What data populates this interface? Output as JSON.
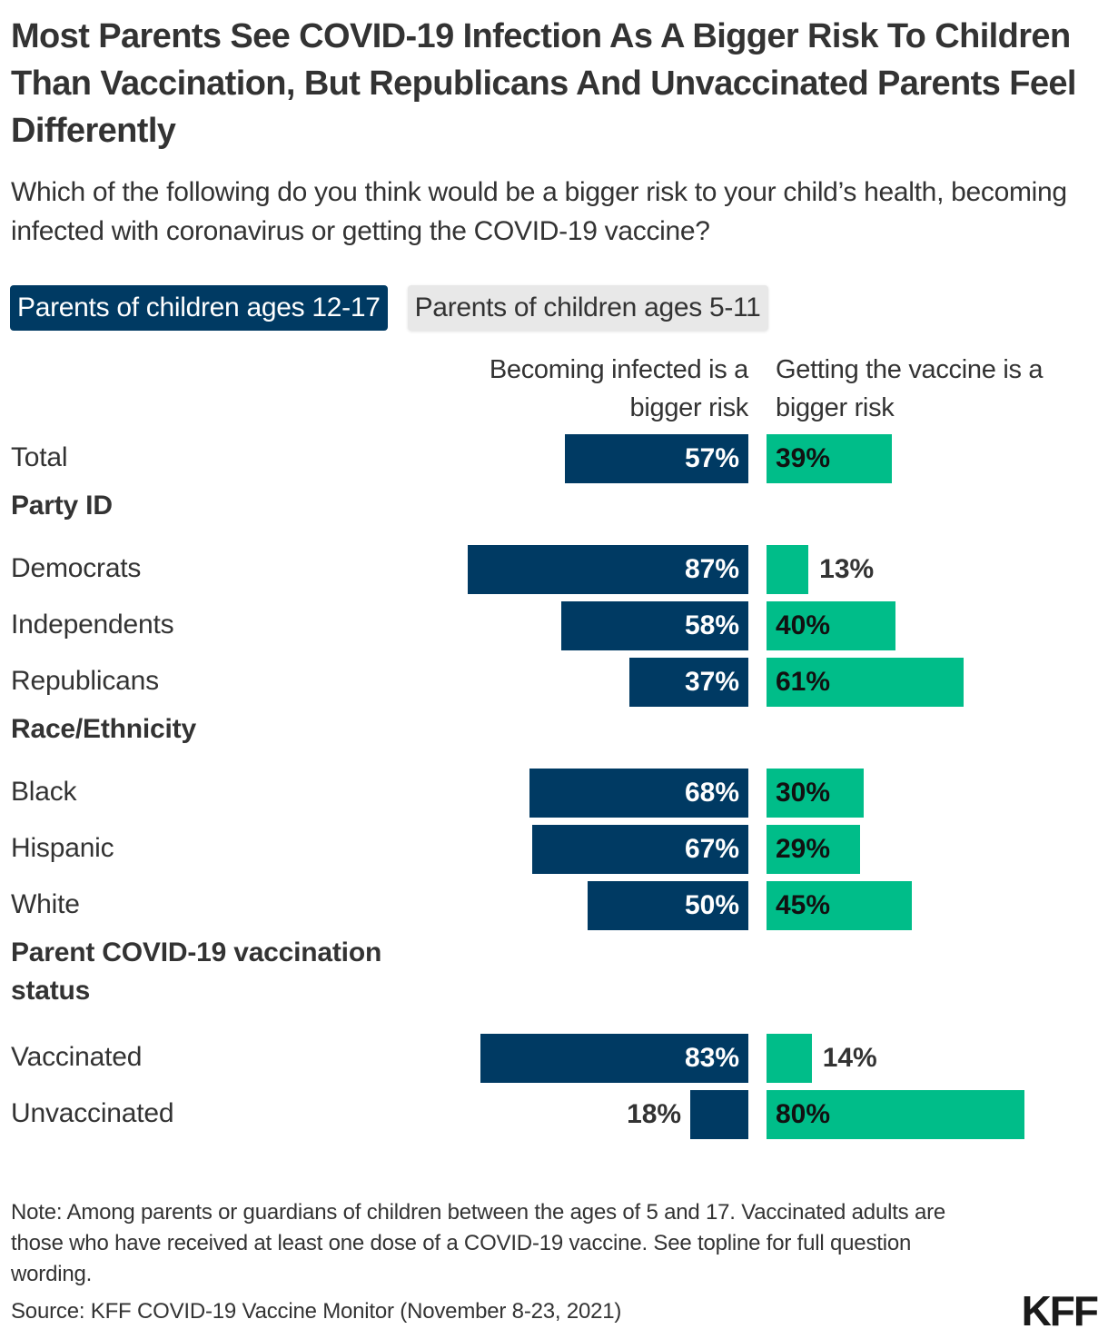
{
  "header": {
    "title": "Most Parents See COVID-19 Infection As A Bigger Risk To Children Than Vaccination, But Republicans And Unvaccinated Parents Feel Differently",
    "subtitle": "Which of the following do you think would be a bigger risk to your child’s health, becoming infected with coronavirus or getting the COVID-19 vaccine?"
  },
  "tabs": [
    {
      "label": "Parents of children ages 12-17",
      "active": true
    },
    {
      "label": "Parents of children ages 5-11",
      "active": false
    }
  ],
  "colors": {
    "infected": "#003a63",
    "vaccine": "#00bd89",
    "text": "#333333"
  },
  "chart_data": {
    "type": "bar",
    "orientation": "horizontal-diverging",
    "title": "Most Parents See COVID-19 Infection As A Bigger Risk To Children Than Vaccination, But Republicans And Unvaccinated Parents Feel Differently",
    "series": [
      {
        "name": "Becoming infected is a bigger risk",
        "direction": "left",
        "color": "#003a63"
      },
      {
        "name": "Getting the vaccine is a bigger risk",
        "direction": "right",
        "color": "#00bd89"
      }
    ],
    "units": "percent",
    "xlim": [
      0,
      100
    ],
    "rows": [
      {
        "kind": "item",
        "label": "Total",
        "infected": 57,
        "vaccine": 39
      },
      {
        "kind": "section",
        "label": "Party ID"
      },
      {
        "kind": "item",
        "label": "Democrats",
        "infected": 87,
        "vaccine": 13
      },
      {
        "kind": "item",
        "label": "Independents",
        "infected": 58,
        "vaccine": 40
      },
      {
        "kind": "item",
        "label": "Republicans",
        "infected": 37,
        "vaccine": 61
      },
      {
        "kind": "section",
        "label": "Race/Ethnicity"
      },
      {
        "kind": "item",
        "label": "Black",
        "infected": 68,
        "vaccine": 30
      },
      {
        "kind": "item",
        "label": "Hispanic",
        "infected": 67,
        "vaccine": 29
      },
      {
        "kind": "item",
        "label": "White",
        "infected": 50,
        "vaccine": 45
      },
      {
        "kind": "section",
        "label": "Parent COVID-19 vaccination status"
      },
      {
        "kind": "item",
        "label": "Vaccinated",
        "infected": 83,
        "vaccine": 14
      },
      {
        "kind": "item",
        "label": "Unvaccinated",
        "infected": 18,
        "vaccine": 80
      }
    ]
  },
  "footer": {
    "note": "Note: Among parents or guardians of children between the ages of 5 and 17. Vaccinated adults are those who have received at least one dose of a COVID-19 vaccine. See topline for full question wording.",
    "source": "Source: KFF COVID-19 Vaccine Monitor (November 8-23, 2021)",
    "logo": "KFF"
  }
}
